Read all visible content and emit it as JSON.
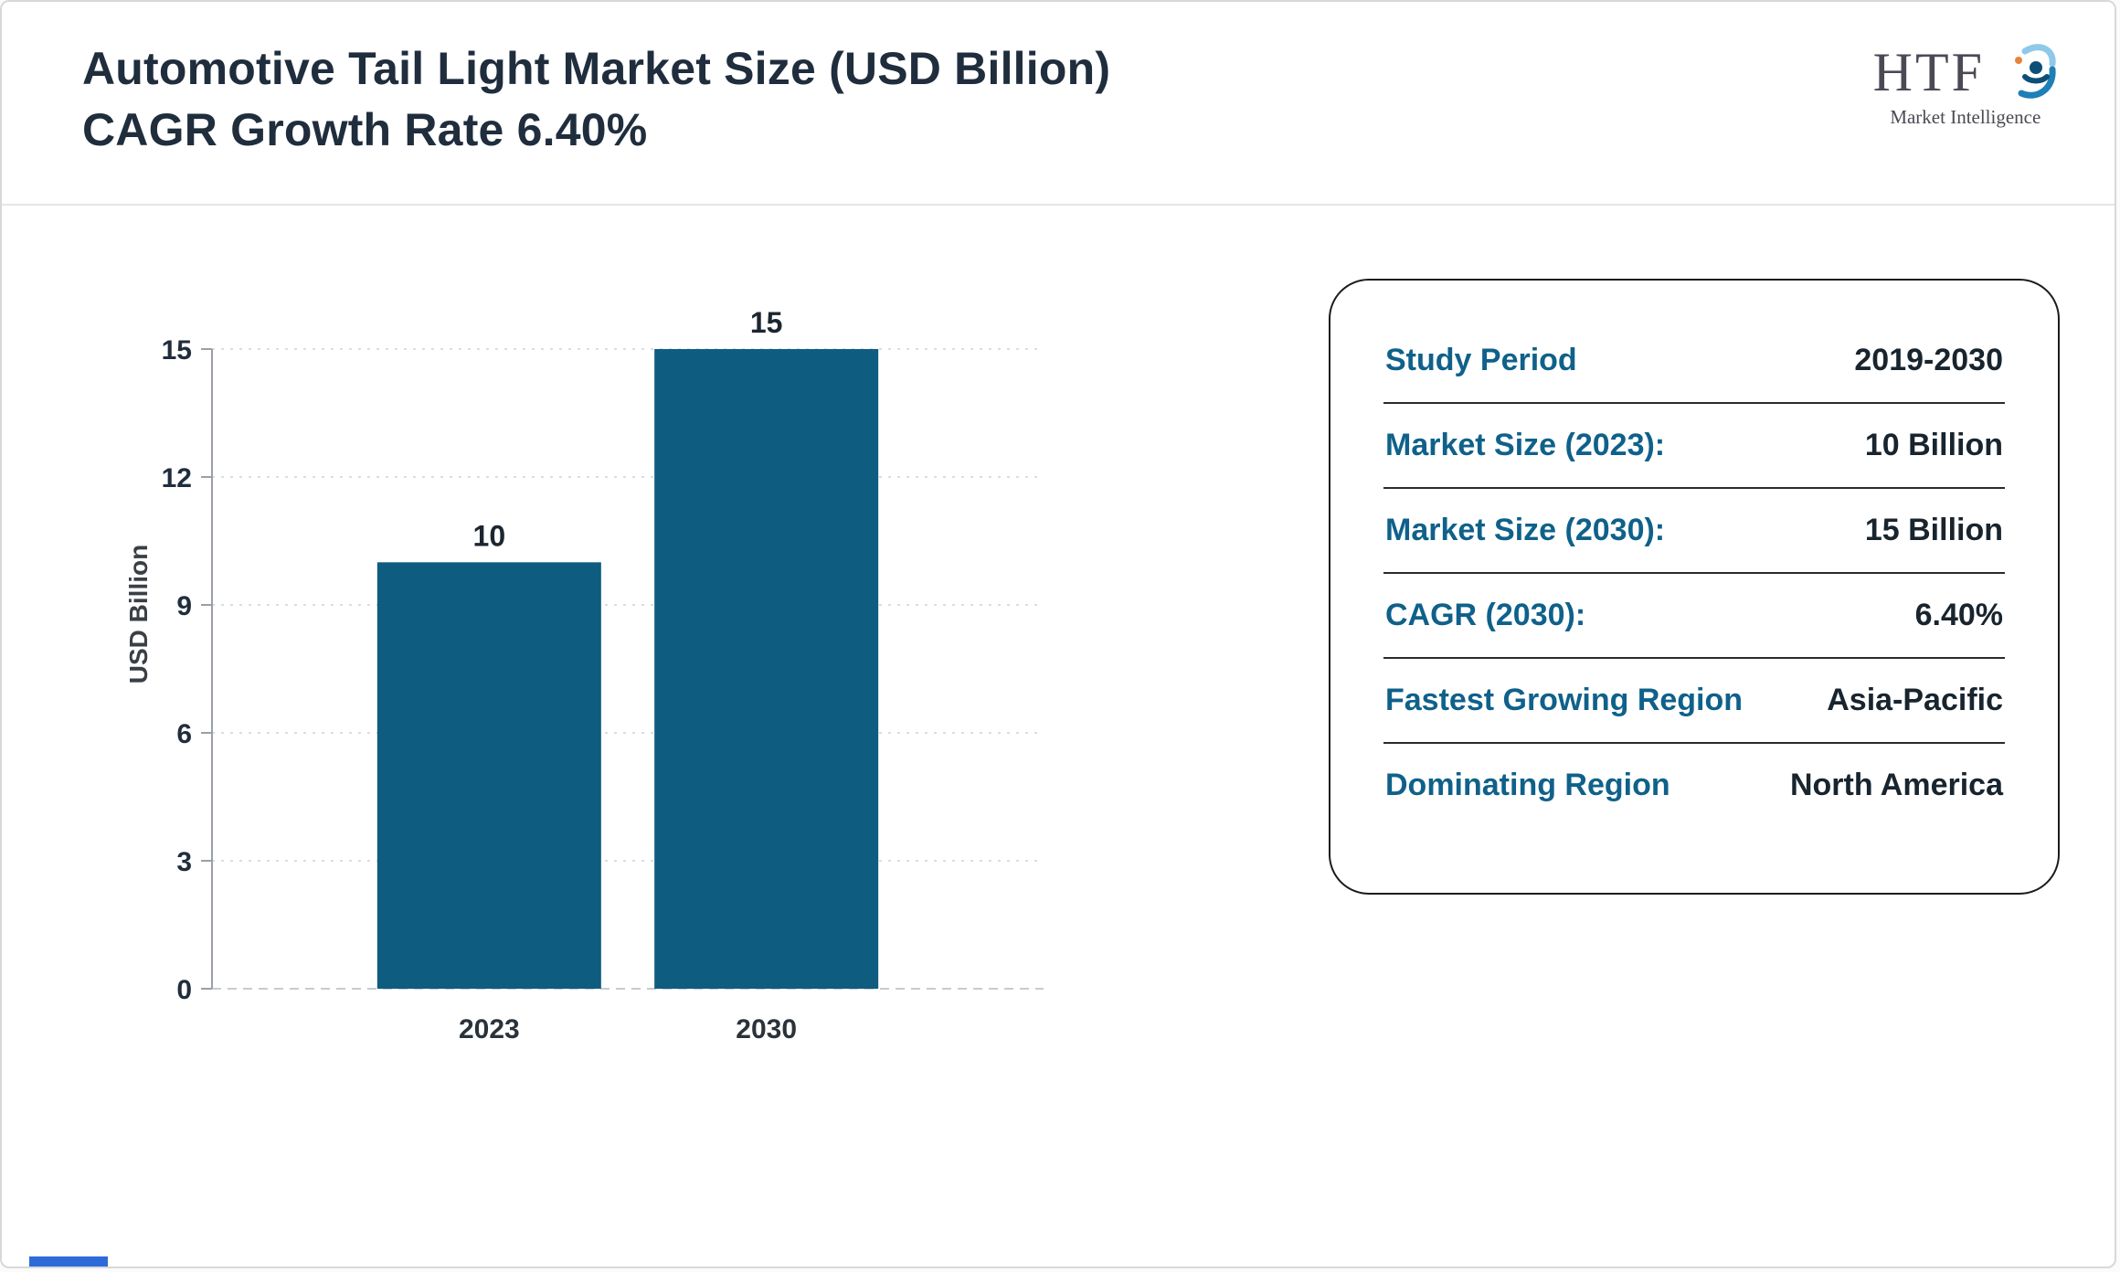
{
  "header": {
    "title_line1": "Automotive Tail Light Market Size (USD Billion)",
    "title_line2": "CAGR Growth Rate 6.40%",
    "logo": {
      "text": "HTF",
      "subtext": "Market Intelligence"
    }
  },
  "chart_data": {
    "type": "bar",
    "categories": [
      "2023",
      "2030"
    ],
    "values": [
      10,
      15
    ],
    "title": "",
    "xlabel": "",
    "ylabel": "USD Billion",
    "ylim": [
      0,
      15
    ],
    "yticks": [
      0,
      3,
      6,
      9,
      12,
      15
    ],
    "grid": true,
    "legend": "none",
    "bar_color": "#0e5c7f"
  },
  "card": {
    "rows": [
      {
        "label": "Study Period",
        "value": "2019-2030"
      },
      {
        "label": "Market Size (2023):",
        "value": "10 Billion"
      },
      {
        "label": "Market Size (2030):",
        "value": "15 Billion"
      },
      {
        "label": "CAGR (2030):",
        "value": "6.40%"
      },
      {
        "label": "Fastest Growing Region",
        "value": "Asia-Pacific"
      },
      {
        "label": "Dominating Region",
        "value": "North America"
      }
    ]
  },
  "colors": {
    "bar_fill": "#0e5c7f",
    "label_teal": "#0f618a",
    "text_dark": "#1f2d3d",
    "gridline": "#d9dadd",
    "axis": "#9aa0a6",
    "bottom_strip": "#2e6bd8"
  }
}
